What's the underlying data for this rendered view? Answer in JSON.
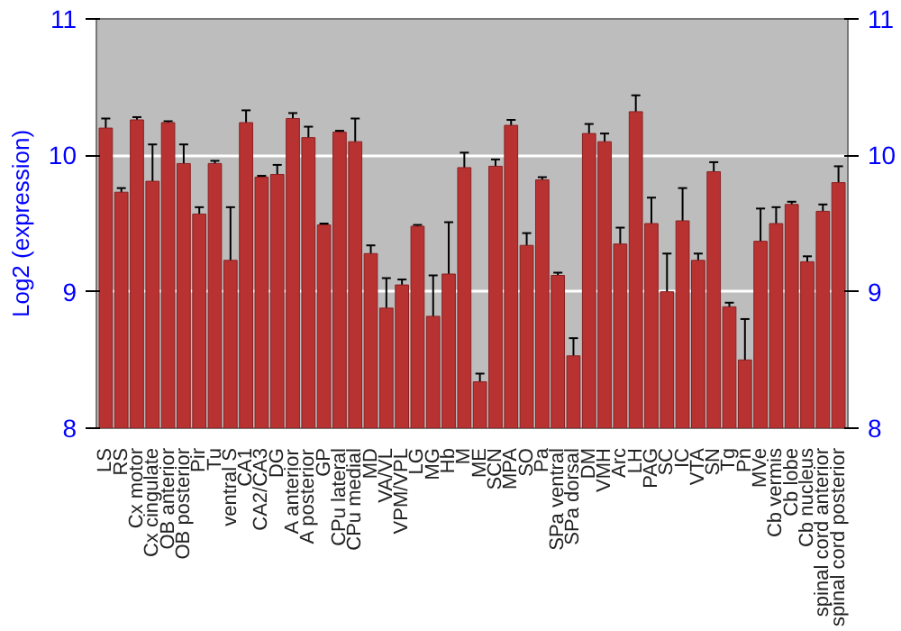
{
  "chart_data": {
    "type": "bar",
    "ylabel": "Log2 (expression)",
    "categories": [
      "LS",
      "RS",
      "Cx motor",
      "Cx cingulate",
      "OB anterior",
      "OB posterior",
      "Pir",
      "Tu",
      "ventral S",
      "CA1",
      "CA2/CA3",
      "DG",
      "A anterior",
      "A posterior",
      "GP",
      "CPu lateral",
      "CPu medial",
      "MD",
      "VA/VL",
      "VPM/VPL",
      "LG",
      "MG",
      "Hb",
      "M",
      "ME",
      "SCN",
      "MPA",
      "SO",
      "Pa",
      "SPa ventral",
      "SPa dorsal",
      "DM",
      "VMH",
      "Arc",
      "LH",
      "PAG",
      "SC",
      "IC",
      "VTA",
      "SN",
      "Tg",
      "Pn",
      "MVe",
      "Cb vermis",
      "Cb lobe",
      "Cb nucleus",
      "spinal cord anterior",
      "spinal cord posterior"
    ],
    "values": [
      10.2,
      9.73,
      10.26,
      9.81,
      10.24,
      9.94,
      9.57,
      9.94,
      9.23,
      10.24,
      9.84,
      9.86,
      10.27,
      10.13,
      9.49,
      10.17,
      10.1,
      9.28,
      8.88,
      9.05,
      9.48,
      8.82,
      9.13,
      9.91,
      8.34,
      9.92,
      10.22,
      9.34,
      9.82,
      9.12,
      8.53,
      10.16,
      10.1,
      9.35,
      10.32,
      9.5,
      9.0,
      9.52,
      9.23,
      9.88,
      8.89,
      8.5,
      9.37,
      9.5,
      9.64,
      9.22,
      9.59,
      9.8
    ],
    "errors": [
      0.07,
      0.03,
      0.02,
      0.27,
      0.01,
      0.14,
      0.05,
      0.02,
      0.39,
      0.09,
      0.01,
      0.07,
      0.04,
      0.08,
      0.01,
      0.01,
      0.17,
      0.06,
      0.22,
      0.04,
      0.01,
      0.3,
      0.38,
      0.11,
      0.06,
      0.05,
      0.04,
      0.09,
      0.02,
      0.02,
      0.13,
      0.07,
      0.06,
      0.12,
      0.12,
      0.19,
      0.28,
      0.24,
      0.05,
      0.07,
      0.03,
      0.3,
      0.24,
      0.12,
      0.02,
      0.04,
      0.05,
      0.12
    ],
    "color": "#b83232",
    "ylim": [
      8,
      11
    ],
    "yticks": [
      8,
      9,
      10,
      11
    ],
    "y2lim": [
      8,
      11
    ],
    "y2ticks": [
      8,
      9,
      10,
      11
    ],
    "grid": "y"
  }
}
